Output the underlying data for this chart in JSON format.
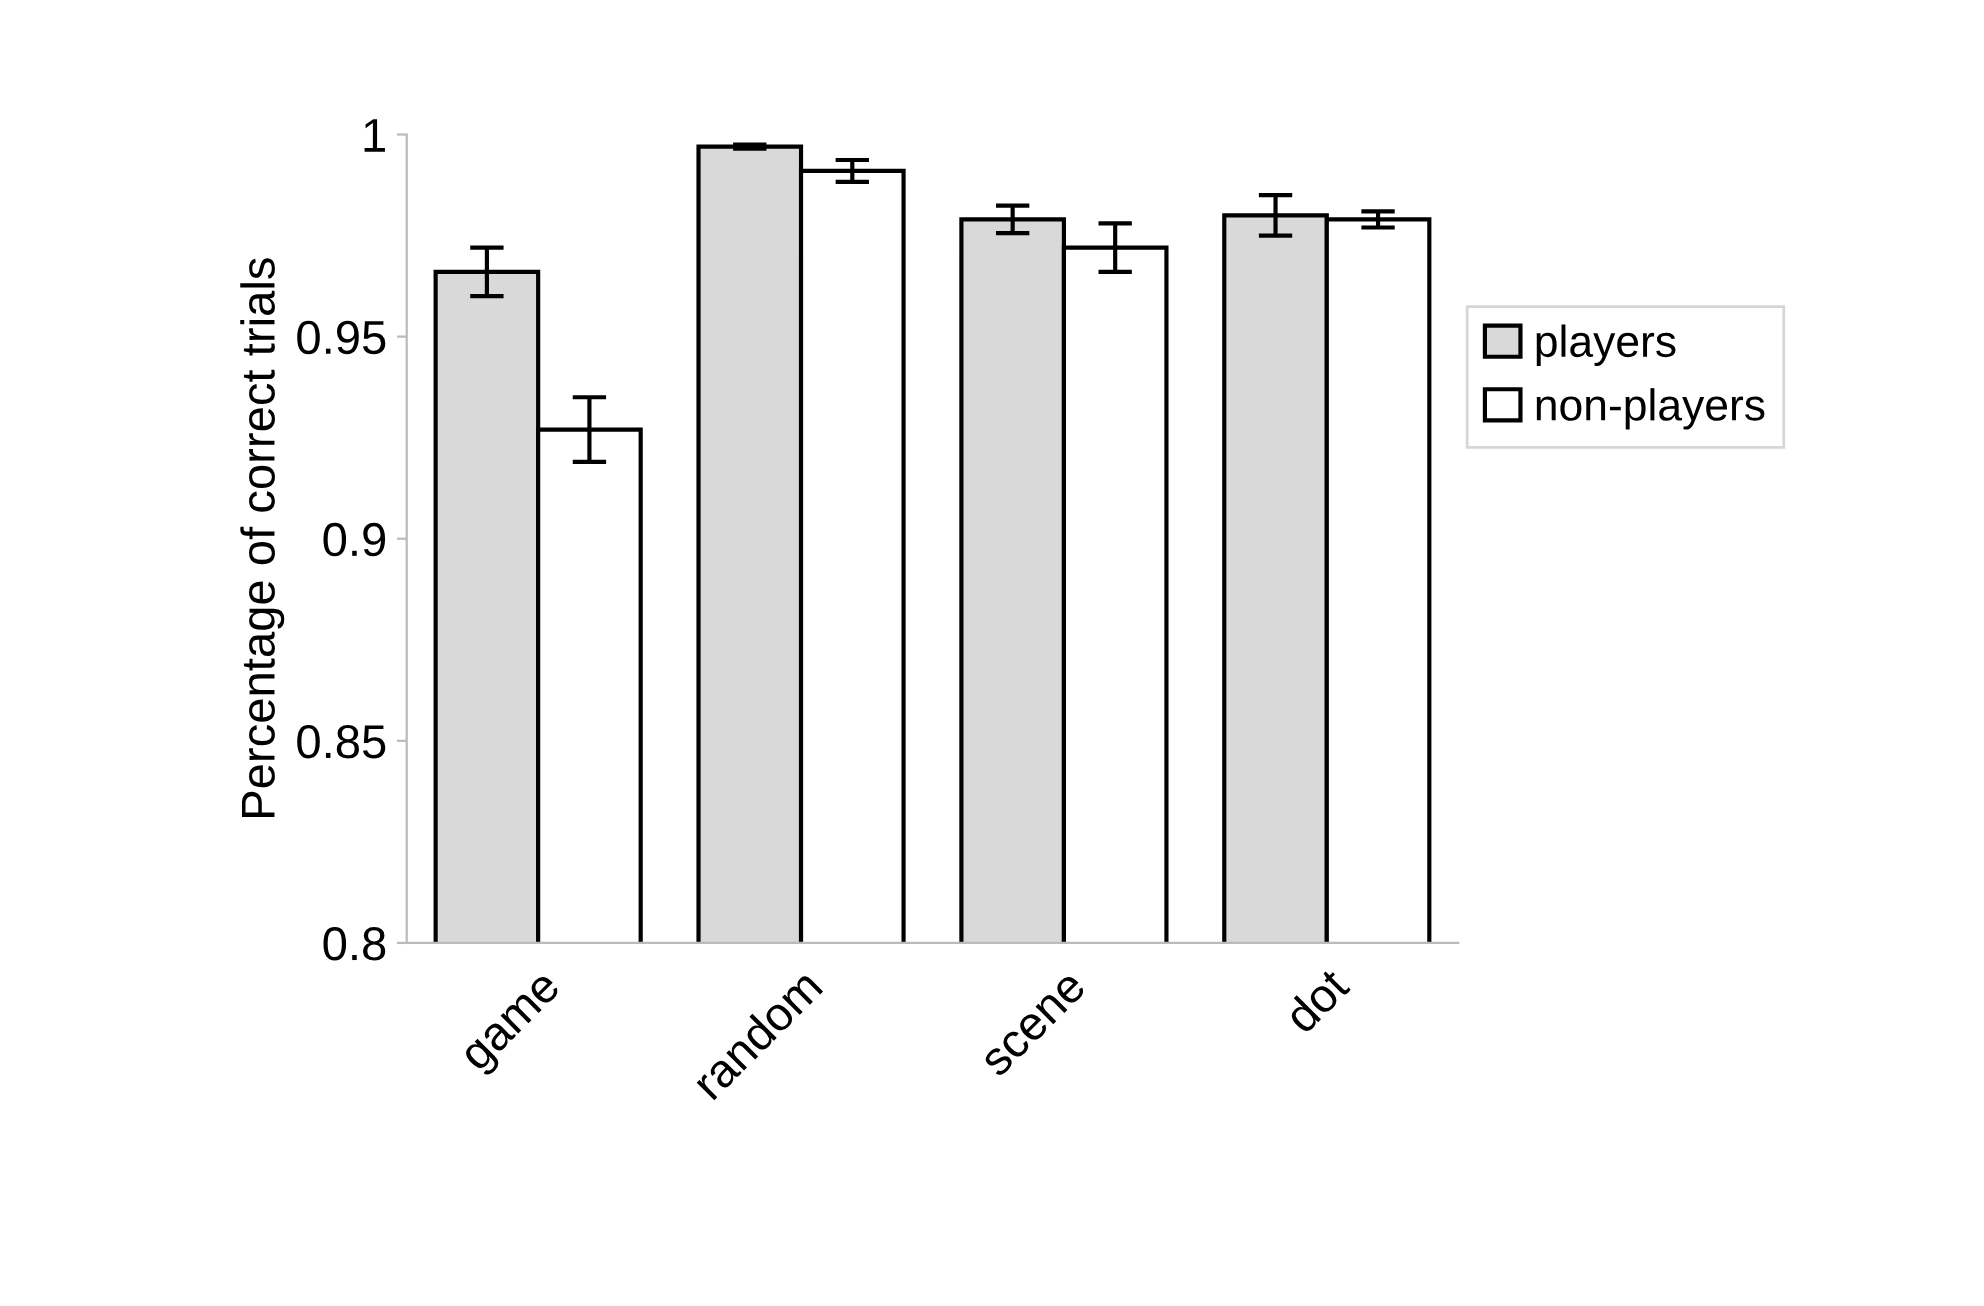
{
  "chart_data": {
    "type": "bar",
    "ylabel": "Percentage of correct trials",
    "categories": [
      "game",
      "random",
      "scene",
      "dot"
    ],
    "series": [
      {
        "name": "players",
        "color": "#d9d9d9",
        "values": [
          0.966,
          0.997,
          0.979,
          0.98
        ],
        "errors": [
          0.006,
          0.0005,
          0.0034,
          0.005
        ]
      },
      {
        "name": "non-players",
        "color": "#ffffff",
        "values": [
          0.927,
          0.991,
          0.972,
          0.979
        ],
        "errors": [
          0.008,
          0.0027,
          0.006,
          0.002
        ]
      }
    ],
    "ylim": [
      0.8,
      1.0
    ],
    "yticks": [
      0.8,
      0.85,
      0.9,
      0.95,
      1
    ],
    "grid": false,
    "legend": "right"
  }
}
